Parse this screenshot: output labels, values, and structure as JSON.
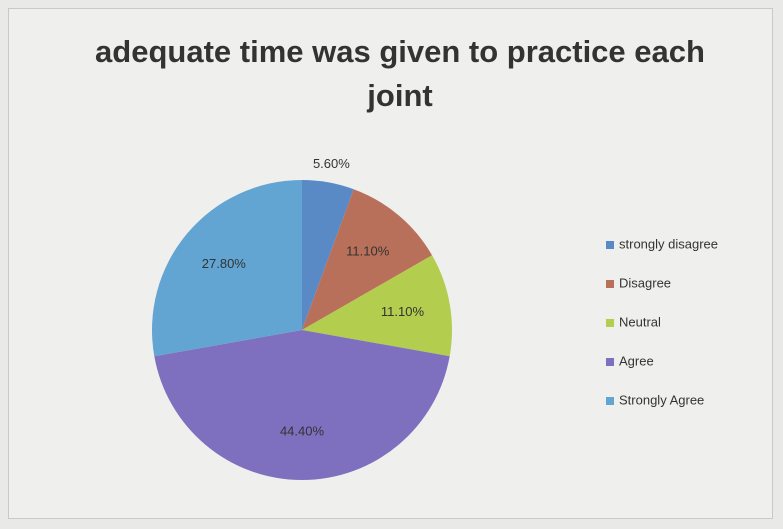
{
  "chart_data": {
    "type": "pie",
    "title": "adequate time was given to practice each joint",
    "categories": [
      "strongly disagree",
      "Disagree",
      "Neutral",
      "Agree",
      "Strongly Agree"
    ],
    "values": [
      5.6,
      11.1,
      11.1,
      44.4,
      27.8
    ],
    "value_labels": [
      "5.60%",
      "11.10%",
      "11.10%",
      "44.40%",
      "27.80%"
    ],
    "colors": [
      "#5a8ac6",
      "#b9705a",
      "#b3cd4e",
      "#7e70be",
      "#62a4d2"
    ],
    "legend": "right"
  }
}
